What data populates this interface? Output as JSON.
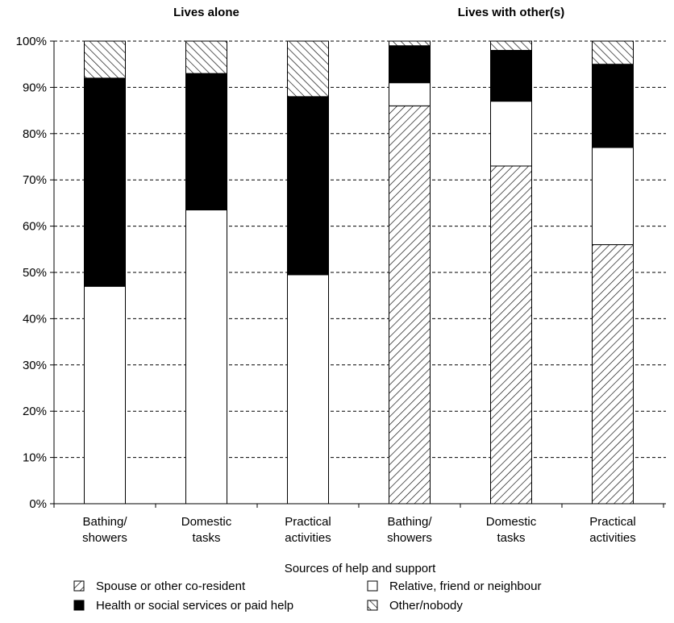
{
  "chart_data": {
    "type": "bar",
    "stacked": true,
    "xlabel": "Sources of help and support",
    "ylabel": "",
    "ylim": [
      0,
      100
    ],
    "y_unit": "%",
    "yticks": [
      0,
      10,
      20,
      30,
      40,
      50,
      60,
      70,
      80,
      90,
      100
    ],
    "grid": true,
    "groups": [
      {
        "title": "Lives alone",
        "categories": [
          "Bathing/ showers",
          "Domestic tasks",
          "Practical activities"
        ]
      },
      {
        "title": "Lives with other(s)",
        "categories": [
          "Bathing/ showers",
          "Domestic tasks",
          "Practical activities"
        ]
      }
    ],
    "category_lines": [
      [
        "Bathing/",
        "showers"
      ],
      [
        "Domestic",
        "tasks"
      ],
      [
        "Practical",
        "activities"
      ],
      [
        "Bathing/",
        "showers"
      ],
      [
        "Domestic",
        "tasks"
      ],
      [
        "Practical",
        "activities"
      ]
    ],
    "series": [
      {
        "name": "Spouse or other co-resident",
        "pattern": "diag-fwd",
        "values": [
          0,
          0,
          0,
          86,
          73,
          56
        ]
      },
      {
        "name": "Relative, friend or neighbour",
        "pattern": "white",
        "values": [
          47,
          63.5,
          49.5,
          5,
          14,
          21
        ]
      },
      {
        "name": "Health or social services or paid help",
        "pattern": "black",
        "values": [
          45,
          29.5,
          38.5,
          8,
          11,
          18
        ]
      },
      {
        "name": "Other/nobody",
        "pattern": "diag-back",
        "values": [
          8,
          7,
          12,
          1,
          2,
          5
        ]
      }
    ],
    "legend_position": "bottom"
  }
}
